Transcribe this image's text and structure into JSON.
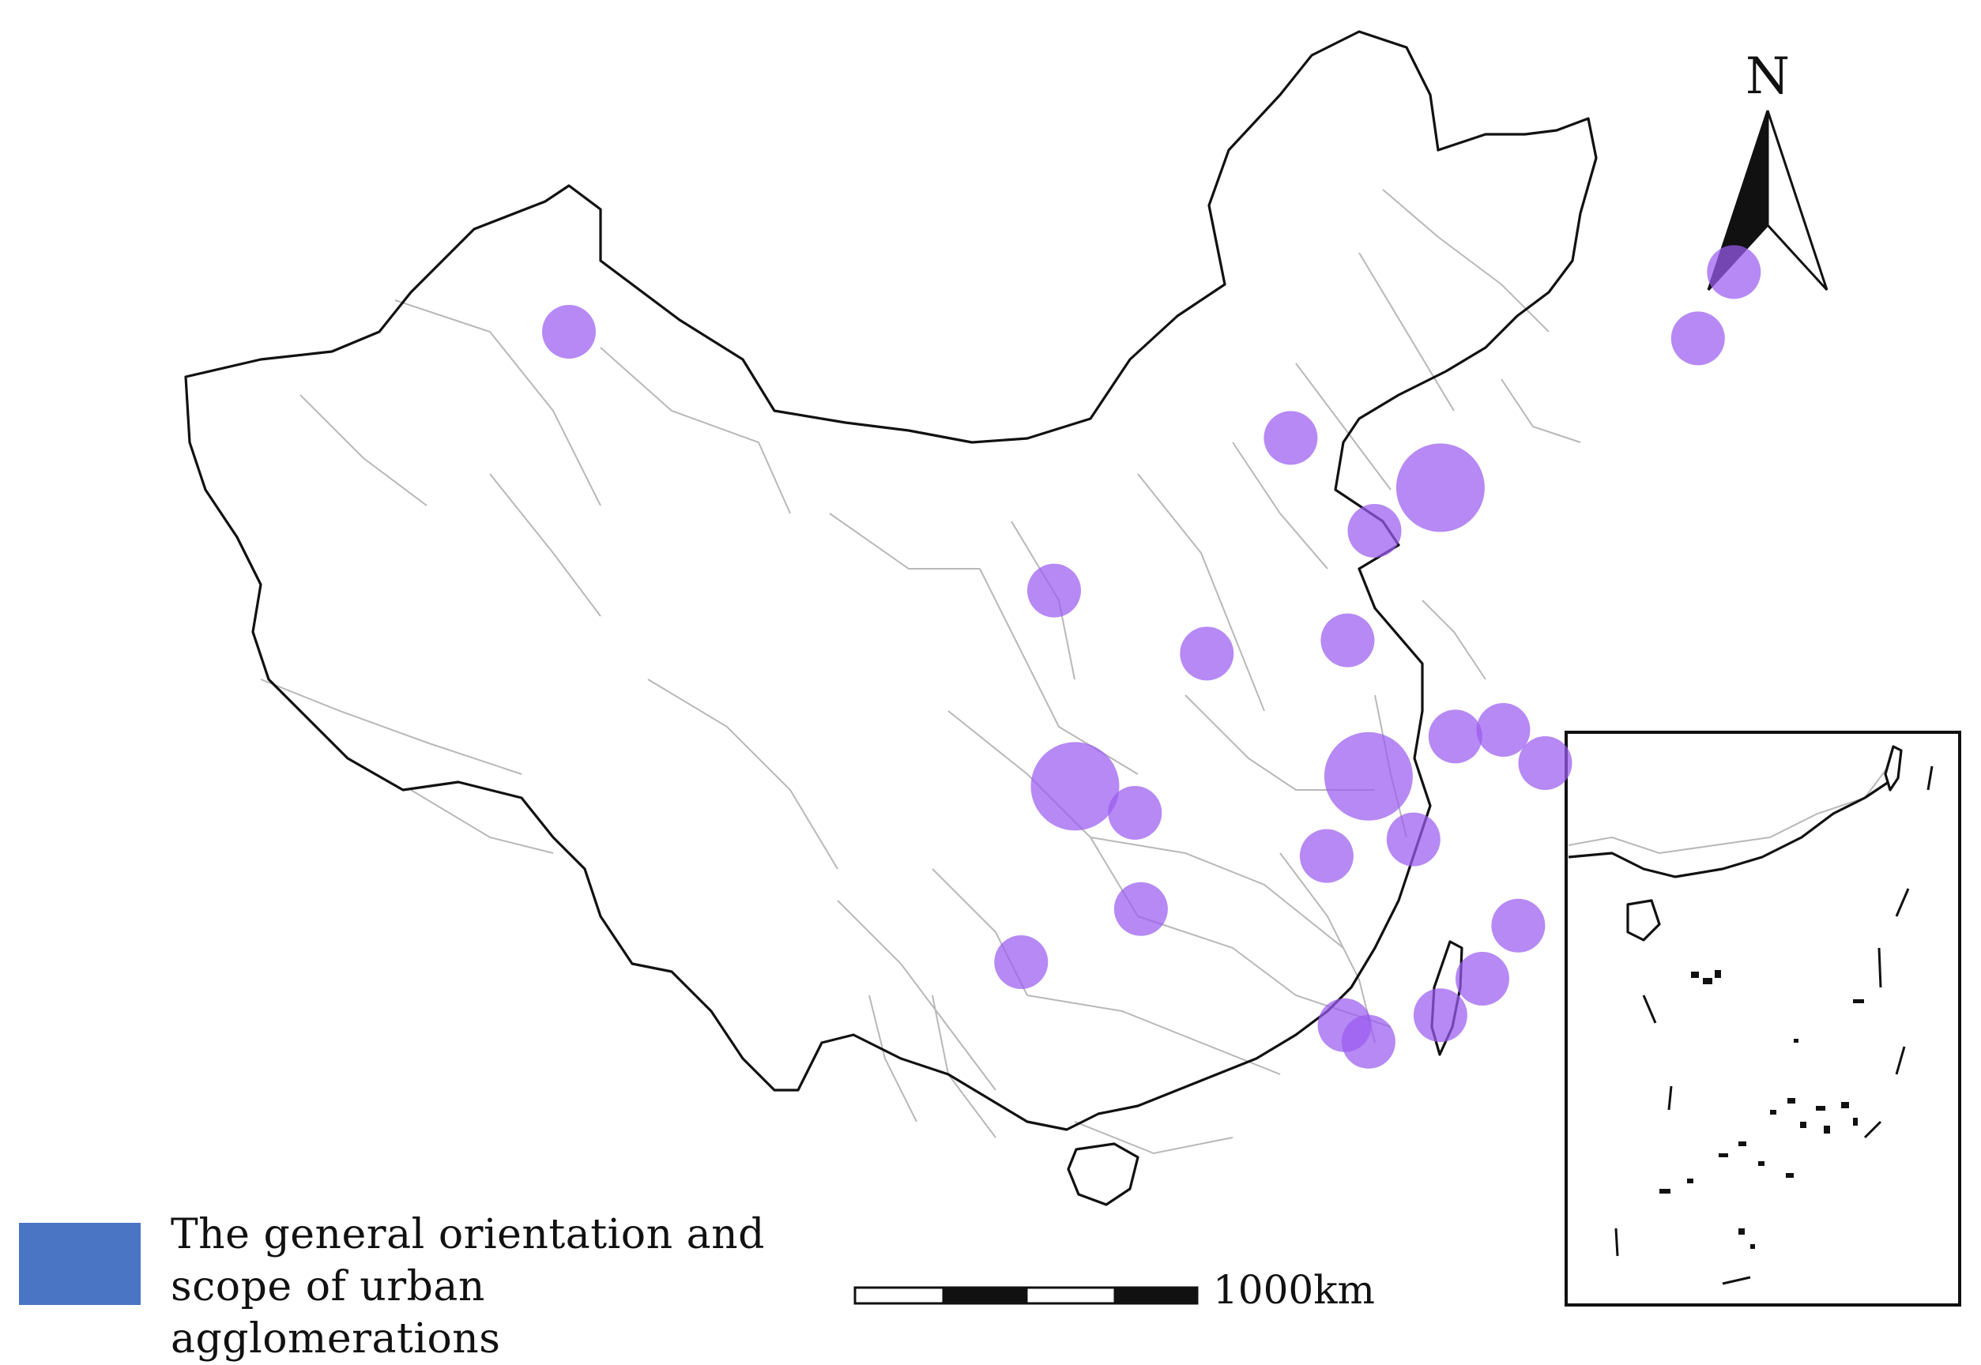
{
  "north_arrow": {
    "label": "N"
  },
  "legend": {
    "color": "#4a74c4",
    "text": "The general orientation and scope of urban agglomerations"
  },
  "scale_bar": {
    "label": "1000km"
  },
  "agglomeration_color": "#9a5cf0",
  "urban_agglomerations": [
    {
      "lon": 87.6,
      "lat": 44.0,
      "size": "medium"
    },
    {
      "lon": 126.5,
      "lat": 45.8,
      "size": "medium"
    },
    {
      "lon": 125.3,
      "lat": 43.8,
      "size": "medium"
    },
    {
      "lon": 111.7,
      "lat": 40.8,
      "size": "medium"
    },
    {
      "lon": 114.5,
      "lat": 38.0,
      "size": "medium"
    },
    {
      "lon": 116.7,
      "lat": 39.3,
      "size": "large"
    },
    {
      "lon": 103.8,
      "lat": 36.2,
      "size": "medium"
    },
    {
      "lon": 108.9,
      "lat": 34.3,
      "size": "medium"
    },
    {
      "lon": 113.6,
      "lat": 34.7,
      "size": "medium"
    },
    {
      "lon": 118.8,
      "lat": 32.0,
      "size": "medium"
    },
    {
      "lon": 117.2,
      "lat": 31.8,
      "size": "medium"
    },
    {
      "lon": 120.2,
      "lat": 31.0,
      "size": "medium"
    },
    {
      "lon": 114.3,
      "lat": 30.6,
      "size": "large"
    },
    {
      "lon": 115.8,
      "lat": 28.7,
      "size": "medium"
    },
    {
      "lon": 104.5,
      "lat": 30.3,
      "size": "large"
    },
    {
      "lon": 106.5,
      "lat": 29.5,
      "size": "medium"
    },
    {
      "lon": 112.9,
      "lat": 28.2,
      "size": "medium"
    },
    {
      "lon": 106.7,
      "lat": 26.6,
      "size": "medium"
    },
    {
      "lon": 102.7,
      "lat": 25.0,
      "size": "medium"
    },
    {
      "lon": 119.3,
      "lat": 26.1,
      "size": "medium"
    },
    {
      "lon": 118.1,
      "lat": 24.5,
      "size": "medium"
    },
    {
      "lon": 113.5,
      "lat": 23.1,
      "size": "medium"
    },
    {
      "lon": 114.3,
      "lat": 22.6,
      "size": "medium"
    },
    {
      "lon": 116.7,
      "lat": 23.4,
      "size": "medium"
    }
  ]
}
